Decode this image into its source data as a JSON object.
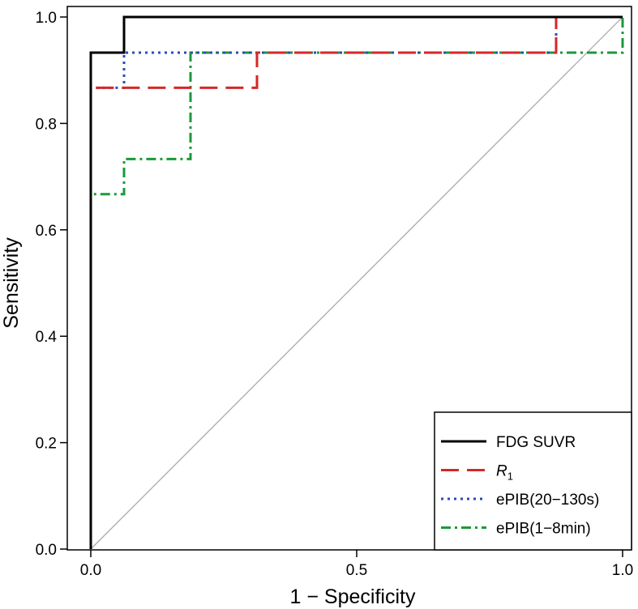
{
  "chart_data": {
    "type": "line",
    "title": "",
    "xlabel": "1 − Specificity",
    "ylabel": "Sensitivity",
    "xlim": [
      0,
      1
    ],
    "ylim": [
      0,
      1
    ],
    "x_ticks": [
      "0.0",
      "0.5",
      "1.0"
    ],
    "y_ticks": [
      "0.0",
      "0.2",
      "0.4",
      "0.6",
      "0.8",
      "1.0"
    ],
    "grid": false,
    "legend_position": "bottom-right",
    "reference_line": {
      "x": [
        0,
        1
      ],
      "y": [
        0,
        1
      ],
      "color": "#aaaaaa"
    },
    "series": [
      {
        "name": "FDG SUVR",
        "color": "#000000",
        "dash": "solid",
        "x": [
          0,
          0,
          0.0625,
          0.0625,
          1
        ],
        "y": [
          0,
          0.933,
          0.933,
          1,
          1
        ]
      },
      {
        "name": "R",
        "name_subscript": "1",
        "color": "#d62728",
        "dash": "dashed",
        "x": [
          0,
          0,
          0.3125,
          0.3125,
          0.875,
          0.875,
          1
        ],
        "y": [
          0,
          0.867,
          0.867,
          0.933,
          0.933,
          1,
          1
        ]
      },
      {
        "name": "ePIB(20−130s)",
        "color": "#2a4bb5",
        "dash": "dotted",
        "x": [
          0,
          0,
          0.0625,
          0.0625,
          0.875,
          0.875,
          1
        ],
        "y": [
          0,
          0.867,
          0.867,
          0.933,
          0.933,
          1,
          1
        ]
      },
      {
        "name": "ePIB(1−8min)",
        "color": "#1a9a3a",
        "dash": "dashdot",
        "x": [
          0,
          0,
          0.0625,
          0.0625,
          0.1875,
          0.1875,
          1,
          1
        ],
        "y": [
          0,
          0.667,
          0.667,
          0.733,
          0.733,
          0.933,
          0.933,
          1
        ]
      }
    ]
  }
}
